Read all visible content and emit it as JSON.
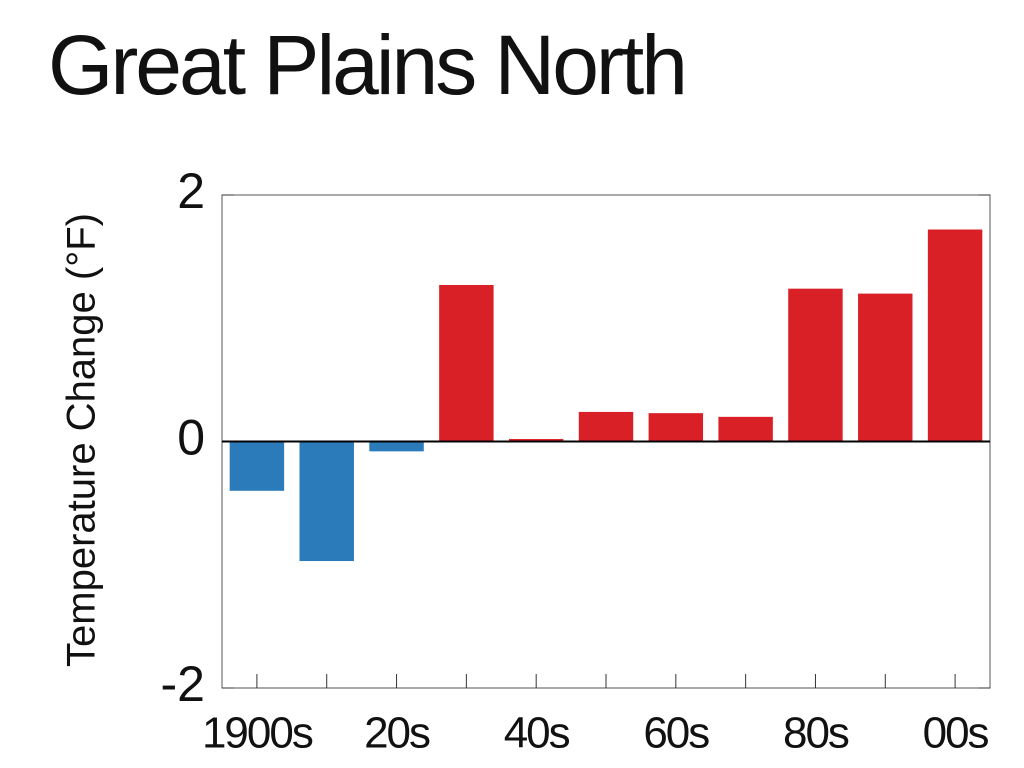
{
  "chart_data": {
    "type": "bar",
    "title": "Great Plains North",
    "y_label": "Temperature Change (°F)",
    "categories": [
      "1900s",
      null,
      "20s",
      null,
      "40s",
      null,
      "60s",
      null,
      "80s",
      null,
      "00s"
    ],
    "values": [
      -0.4,
      -0.97,
      -0.08,
      1.27,
      0.02,
      0.24,
      0.23,
      0.2,
      1.24,
      1.2,
      1.72
    ],
    "colors": [
      "#2b7bba",
      "#2b7bba",
      "#2b7bba",
      "#d92027",
      "#d92027",
      "#d92027",
      "#d92027",
      "#d92027",
      "#d92027",
      "#d92027",
      "#d92027"
    ],
    "ylim": [
      -2,
      2
    ],
    "yticks": [
      -2,
      0,
      2
    ],
    "grid": false
  }
}
